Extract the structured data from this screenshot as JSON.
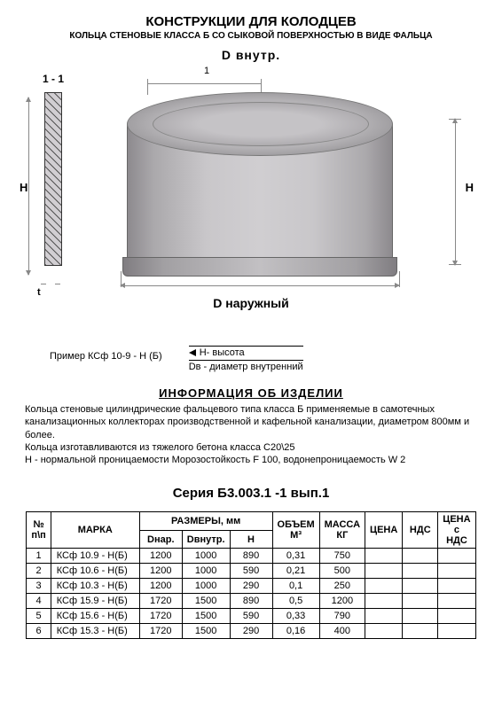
{
  "title": "КОНСТРУКЦИИ ДЛЯ  КОЛОДЦЕВ",
  "subtitle": "КОЛЬЦА СТЕНОВЫЕ  КЛАССА Б  СО СЫКОВОЙ ПОВЕРХНОСТЬЮ В ВИДЕ ФАЛЬЦА",
  "diagram": {
    "d_inner": "D внутр.",
    "d_outer": "D наружный",
    "section_label": "1 - 1",
    "dim_one": "1",
    "h_label": "H",
    "t_label": "t",
    "ring_colors": {
      "light": "#d0ced1",
      "mid": "#aba9ac",
      "dark": "#8d8a8e"
    }
  },
  "example": {
    "prefix": "Пример КСф 10-9 - Н (Б)",
    "line1": "H- высота",
    "line2": "Dв - диаметр внутренний"
  },
  "info": {
    "title": "ИНФОРМАЦИЯ  ОБ  ИЗДЕЛИИ",
    "p1": "Кольца стеновые  цилиндрические фальцевого типа класса Б  применяемые  в самотечных канализационных коллекторах  производственной и кафельной канализации, диаметром 800мм и более.",
    "p2": "Кольца изготавливаются  из тяжелого бетона класса С20\\25",
    "p3": "Н - нормальной проницаемости  Морозостойкость F 100,  водонепроницаемость W 2"
  },
  "series": "Серия Б3.003.1 -1 вып.1",
  "table": {
    "headers": {
      "n": "№ п\\п",
      "marka": "МАРКА",
      "razmery": "РАЗМЕРЫ, мм",
      "dnar": "Dнар.",
      "dvnutr": "Dвнутр.",
      "h": "H",
      "volume": "ОБЪЕМ М³",
      "mass": "МАССА КГ",
      "price": "ЦЕНА",
      "nds": "НДС",
      "price_nds": "ЦЕНА с НДС"
    },
    "rows": [
      {
        "n": "1",
        "marka": "КСф 10.9 - Н(Б)",
        "dnar": "1200",
        "dvnutr": "1000",
        "h": "890",
        "vol": "0,31",
        "mass": "750"
      },
      {
        "n": "2",
        "marka": "КСф 10.6 - Н(Б)",
        "dnar": "1200",
        "dvnutr": "1000",
        "h": "590",
        "vol": "0,21",
        "mass": "500"
      },
      {
        "n": "3",
        "marka": "КСф 10.3 - Н(Б)",
        "dnar": "1200",
        "dvnutr": "1000",
        "h": "290",
        "vol": "0,1",
        "mass": "250"
      },
      {
        "n": "4",
        "marka": "КСф 15.9 - Н(Б)",
        "dnar": "1720",
        "dvnutr": "1500",
        "h": "890",
        "vol": "0,5",
        "mass": "1200"
      },
      {
        "n": "5",
        "marka": "КСф 15.6 - Н(Б)",
        "dnar": "1720",
        "dvnutr": "1500",
        "h": "590",
        "vol": "0,33",
        "mass": "790"
      },
      {
        "n": "6",
        "marka": "КСф 15.3 - Н(Б)",
        "dnar": "1720",
        "dvnutr": "1500",
        "h": "290",
        "vol": "0,16",
        "mass": "400"
      }
    ]
  }
}
